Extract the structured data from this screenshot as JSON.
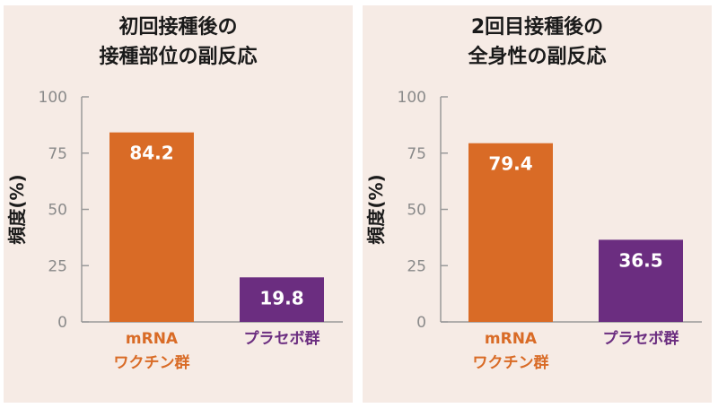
{
  "colors": {
    "vaccine": "#d96b26",
    "placebo": "#6b2d80",
    "axis": "#9a9a9a",
    "panel_bg": "#f6ebe5"
  },
  "chart_data": [
    {
      "type": "bar",
      "title": [
        "初回接種後の",
        "接種部位の副反応"
      ],
      "ylabel": "頻度(%)",
      "ylim": [
        0,
        100
      ],
      "yticks": [
        0,
        25,
        50,
        75,
        100
      ],
      "categories": [
        [
          "mRNA",
          "ワクチン群"
        ],
        [
          "プラセボ群"
        ]
      ],
      "category_colors": [
        "vaccine",
        "placebo"
      ],
      "values": [
        84.2,
        19.8
      ],
      "grid": false
    },
    {
      "type": "bar",
      "title": [
        "2回目接種後の",
        "全身性の副反応"
      ],
      "ylabel": "頻度(%)",
      "ylim": [
        0,
        100
      ],
      "yticks": [
        0,
        25,
        50,
        75,
        100
      ],
      "categories": [
        [
          "mRNA",
          "ワクチン群"
        ],
        [
          "プラセボ群"
        ]
      ],
      "category_colors": [
        "vaccine",
        "placebo"
      ],
      "values": [
        79.4,
        36.5
      ],
      "grid": false
    }
  ]
}
